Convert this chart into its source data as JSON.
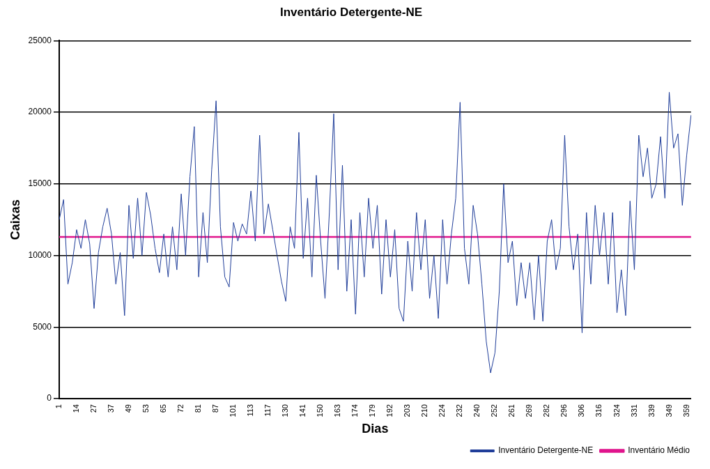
{
  "chart_data": {
    "type": "line",
    "title": "Inventário Detergente-NE",
    "xlabel": "Dias",
    "ylabel": "Caixas",
    "categories": [
      "1",
      null,
      null,
      null,
      "14",
      null,
      null,
      null,
      "27",
      null,
      null,
      null,
      "37",
      null,
      null,
      null,
      "49",
      null,
      null,
      null,
      "53",
      null,
      null,
      null,
      "65",
      null,
      null,
      null,
      "72",
      null,
      null,
      null,
      "81",
      null,
      null,
      null,
      "87",
      null,
      null,
      null,
      "101",
      null,
      null,
      null,
      "113",
      null,
      null,
      null,
      "117",
      null,
      null,
      null,
      "130",
      null,
      null,
      null,
      "141",
      null,
      null,
      null,
      "150",
      null,
      null,
      null,
      "163",
      null,
      null,
      null,
      "174",
      null,
      null,
      null,
      "179",
      null,
      null,
      null,
      "192",
      null,
      null,
      null,
      "203",
      null,
      null,
      null,
      "210",
      null,
      null,
      null,
      "224",
      null,
      null,
      null,
      "232",
      null,
      null,
      null,
      "240",
      null,
      null,
      null,
      "252",
      null,
      null,
      null,
      "261",
      null,
      null,
      null,
      "269",
      null,
      null,
      null,
      "282",
      null,
      null,
      null,
      "296",
      null,
      null,
      null,
      "306",
      null,
      null,
      null,
      "316",
      null,
      null,
      null,
      "324",
      null,
      null,
      null,
      "331",
      null,
      null,
      null,
      "339",
      null,
      null,
      null,
      "349",
      null,
      null,
      null,
      "359",
      null
    ],
    "series": [
      {
        "name": "Inventário Detergente-NE",
        "color": "#1f3d99",
        "values": [
          12500,
          13900,
          8000,
          9500,
          11800,
          10500,
          12500,
          10800,
          6300,
          10200,
          12000,
          13300,
          11500,
          8000,
          10200,
          5800,
          13500,
          9800,
          14000,
          10000,
          14400,
          12800,
          10500,
          8800,
          11500,
          8500,
          12000,
          9000,
          14300,
          10000,
          15500,
          19000,
          8500,
          13000,
          9500,
          16000,
          20800,
          12000,
          8500,
          7800,
          12300,
          11000,
          12200,
          11500,
          14500,
          11000,
          18400,
          11500,
          13600,
          11800,
          10000,
          8200,
          6800,
          12000,
          10500,
          18600,
          9800,
          14000,
          8500,
          15600,
          11000,
          7000,
          13000,
          19900,
          9000,
          16300,
          7500,
          12500,
          5900,
          13000,
          8500,
          14000,
          10500,
          13500,
          7300,
          12500,
          8500,
          11800,
          6300,
          5400,
          11000,
          7500,
          13000,
          9000,
          12500,
          7000,
          10000,
          5600,
          12500,
          8000,
          11500,
          14000,
          20700,
          10500,
          8000,
          13500,
          11500,
          8000,
          4000,
          1800,
          3200,
          7500,
          15000,
          9500,
          11000,
          6500,
          9500,
          7000,
          9500,
          5500,
          10000,
          5400,
          11000,
          12500,
          9000,
          10500,
          18400,
          12000,
          9000,
          11500,
          4600,
          13000,
          8000,
          13500,
          10000,
          13000,
          8000,
          13000,
          6000,
          9000,
          5800,
          13800,
          9000,
          18400,
          15500,
          17500,
          14000,
          15000,
          18300,
          14000,
          21400,
          17500,
          18500,
          13500,
          17000,
          19800
        ]
      },
      {
        "name": "Inventário Médio",
        "color": "#e0148c",
        "values": [
          11300,
          11300,
          11300,
          11300,
          11300,
          11300,
          11300,
          11300,
          11300,
          11300,
          11300,
          11300,
          11300,
          11300,
          11300,
          11300,
          11300,
          11300,
          11300,
          11300,
          11300,
          11300,
          11300,
          11300,
          11300,
          11300,
          11300,
          11300,
          11300,
          11300,
          11300,
          11300,
          11300,
          11300,
          11300,
          11300,
          11300,
          11300,
          11300,
          11300,
          11300,
          11300,
          11300,
          11300,
          11300,
          11300,
          11300,
          11300,
          11300,
          11300,
          11300,
          11300,
          11300,
          11300,
          11300,
          11300,
          11300,
          11300,
          11300,
          11300,
          11300,
          11300,
          11300,
          11300,
          11300,
          11300,
          11300,
          11300,
          11300,
          11300,
          11300,
          11300,
          11300,
          11300,
          11300,
          11300,
          11300,
          11300,
          11300,
          11300,
          11300,
          11300,
          11300,
          11300,
          11300,
          11300,
          11300,
          11300,
          11300,
          11300,
          11300,
          11300,
          11300,
          11300,
          11300,
          11300,
          11300,
          11300,
          11300,
          11300,
          11300,
          11300,
          11300,
          11300,
          11300,
          11300,
          11300,
          11300,
          11300,
          11300,
          11300,
          11300,
          11300,
          11300,
          11300,
          11300,
          11300,
          11300,
          11300,
          11300,
          11300,
          11300,
          11300,
          11300,
          11300,
          11300,
          11300,
          11300,
          11300,
          11300,
          11300,
          11300,
          11300,
          11300,
          11300,
          11300,
          11300,
          11300,
          11300,
          11300,
          11300,
          11300,
          11300,
          11300,
          11300,
          11300
        ]
      }
    ],
    "ylim": [
      0,
      25000
    ],
    "yticks": [
      0,
      5000,
      10000,
      15000,
      20000,
      25000
    ],
    "grid": "y",
    "legend": "bottom right",
    "marker": "none",
    "line_style": "solid"
  }
}
